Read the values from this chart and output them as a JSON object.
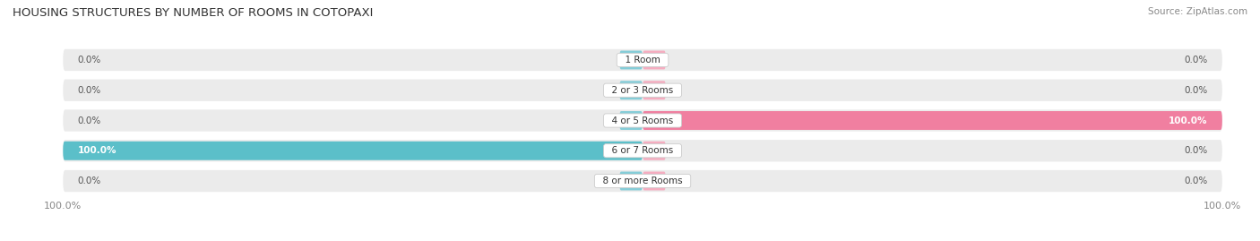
{
  "title": "HOUSING STRUCTURES BY NUMBER OF ROOMS IN COTOPAXI",
  "source": "Source: ZipAtlas.com",
  "categories": [
    "1 Room",
    "2 or 3 Rooms",
    "4 or 5 Rooms",
    "6 or 7 Rooms",
    "8 or more Rooms"
  ],
  "owner_values": [
    0.0,
    0.0,
    0.0,
    100.0,
    0.0
  ],
  "renter_values": [
    0.0,
    0.0,
    100.0,
    0.0,
    0.0
  ],
  "owner_color": "#5bbfc9",
  "renter_color": "#f07fa0",
  "owner_stub_color": "#85cdd8",
  "renter_stub_color": "#f5adc0",
  "row_bg_color": "#ebebeb",
  "label_color": "#555555",
  "title_color": "#333333",
  "max_val": 100.0,
  "stub_val": 4.0,
  "figsize": [
    14.06,
    2.69
  ],
  "dpi": 100
}
